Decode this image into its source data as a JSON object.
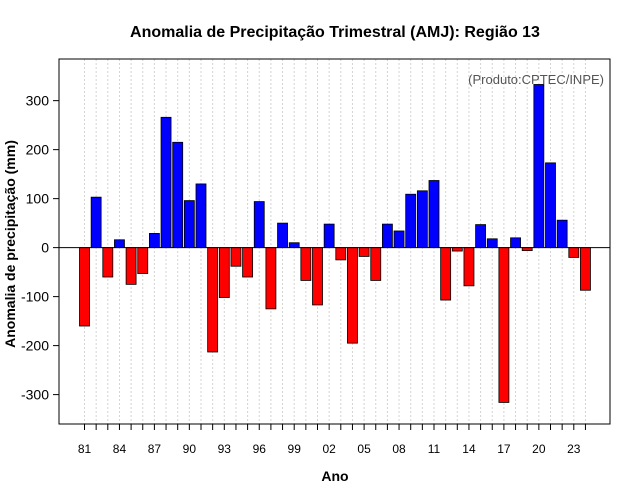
{
  "chart_data": {
    "type": "bar",
    "title": "Anomalia de Precipitação Trimestral (AMJ): Região 13",
    "xlabel": "Ano",
    "ylabel": "Anomalia de precipitação (mm)",
    "credit": "(Produto:CPTEC/INPE)",
    "ylim": [
      -360,
      385
    ],
    "yticks": [
      -300,
      -200,
      -100,
      0,
      100,
      200,
      300
    ],
    "xtick_labels": [
      "81",
      "84",
      "87",
      "90",
      "93",
      "96",
      "99",
      "02",
      "05",
      "08",
      "11",
      "14",
      "17",
      "20",
      "23"
    ],
    "grid": true,
    "colors": {
      "positive": "#0000ff",
      "negative": "#ff0000",
      "border": "#000000",
      "grid": "#d3d3d3"
    },
    "categories": [
      "1981",
      "1982",
      "1983",
      "1984",
      "1985",
      "1986",
      "1987",
      "1988",
      "1989",
      "1990",
      "1991",
      "1992",
      "1993",
      "1994",
      "1995",
      "1996",
      "1997",
      "1998",
      "1999",
      "2000",
      "2001",
      "2002",
      "2003",
      "2004",
      "2005",
      "2006",
      "2007",
      "2008",
      "2009",
      "2010",
      "2011",
      "2012",
      "2013",
      "2014",
      "2015",
      "2016",
      "2017",
      "2018",
      "2019",
      "2020",
      "2021",
      "2022",
      "2023",
      "2024"
    ],
    "values": [
      -160,
      103,
      -60,
      16,
      -75,
      -53,
      29,
      266,
      215,
      96,
      130,
      -213,
      -102,
      -38,
      -60,
      94,
      -125,
      50,
      10,
      -67,
      -117,
      48,
      -25,
      -195,
      -18,
      -67,
      48,
      34,
      109,
      116,
      137,
      -107,
      -7,
      -78,
      47,
      18,
      -316,
      20,
      -6,
      333,
      173,
      56,
      -20,
      -87
    ]
  }
}
